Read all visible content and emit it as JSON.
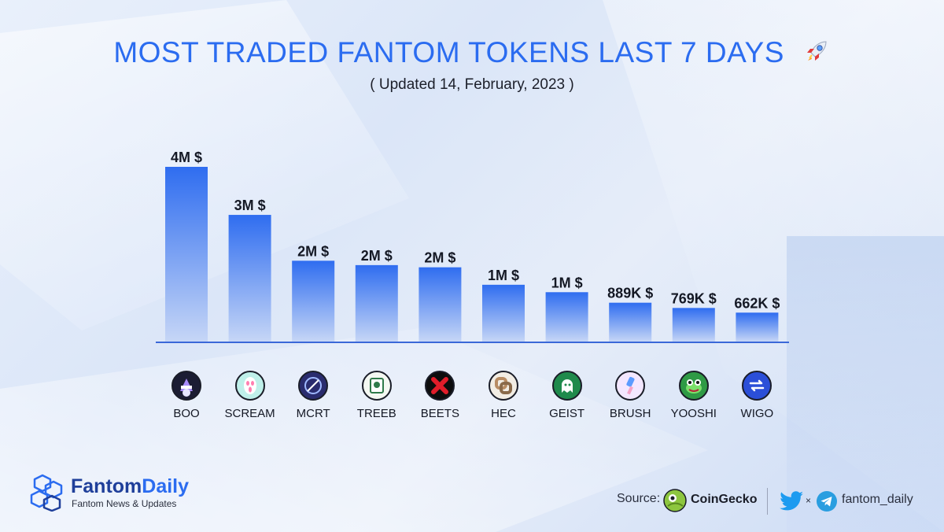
{
  "header": {
    "title": "MOST TRADED FANTOM TOKENS LAST 7 DAYS",
    "subtitle": "( Updated 14, February, 2023 )"
  },
  "chart_data": {
    "type": "bar",
    "title": "MOST TRADED FANTOM TOKENS LAST 7 DAYS",
    "subtitle": "( Updated 14, February, 2023 )",
    "xlabel": "",
    "ylabel": "",
    "unit": "USD",
    "categories": [
      "BOO",
      "SCREAM",
      "MCRT",
      "TREEB",
      "BEETS",
      "HEC",
      "GEIST",
      "BRUSH",
      "YOOSHI",
      "WIGO"
    ],
    "values": [
      4000000,
      2900000,
      1850000,
      1750000,
      1700000,
      1300000,
      1130000,
      889000,
      769000,
      662000
    ],
    "data_labels": [
      "4M $",
      "3M $",
      "2M $",
      "2M $",
      "2M $",
      "1M $",
      "1M $",
      "889K $",
      "769K $",
      "662K $"
    ],
    "ylim": [
      0,
      4000000
    ],
    "grid": false,
    "legend": "none",
    "bar_color_top": "#2f6df0",
    "bar_color_bottom": "#c6d6f6"
  },
  "tokens": [
    {
      "symbol": "BOO",
      "icon": "boo-ghost-icon",
      "bg": "#1b1d33",
      "accent": "#a78bfa"
    },
    {
      "symbol": "SCREAM",
      "icon": "scream-mask-icon",
      "bg": "#bff0ea",
      "accent": "#ff7fb0"
    },
    {
      "symbol": "MCRT",
      "icon": "mcrt-orb-icon",
      "bg": "#2a2c6e",
      "accent": "#9fb8ff"
    },
    {
      "symbol": "TREEB",
      "icon": "treeb-card-icon",
      "bg": "#f4f8f2",
      "accent": "#2f7a4a"
    },
    {
      "symbol": "BEETS",
      "icon": "beets-cross-icon",
      "bg": "#0d0d0d",
      "accent": "#e11d2a"
    },
    {
      "symbol": "HEC",
      "icon": "hec-link-icon",
      "bg": "#f2ede4",
      "accent": "#b88c63"
    },
    {
      "symbol": "GEIST",
      "icon": "geist-ghost-icon",
      "bg": "#1f8a4c",
      "accent": "#ffffff"
    },
    {
      "symbol": "BRUSH",
      "icon": "brush-icon",
      "bg": "#f3e7ff",
      "accent": "#5b9bff"
    },
    {
      "symbol": "YOOSHI",
      "icon": "yooshi-frog-icon",
      "bg": "#2f9a45",
      "accent": "#7be06a"
    },
    {
      "symbol": "WIGO",
      "icon": "wigo-arrows-icon",
      "bg": "#2b4fd8",
      "accent": "#ffffff"
    }
  ],
  "footer": {
    "brand_name_a": "Fantom",
    "brand_name_b": "Daily",
    "brand_tagline": "Fantom News & Updates",
    "source_label": "Source:",
    "source_name": "CoinGecko",
    "x_mark": "×",
    "handle": "fantom_daily"
  },
  "colors": {
    "accent": "#2b6cf0",
    "brand_dark": "#1f3f9a",
    "text": "#141824"
  }
}
